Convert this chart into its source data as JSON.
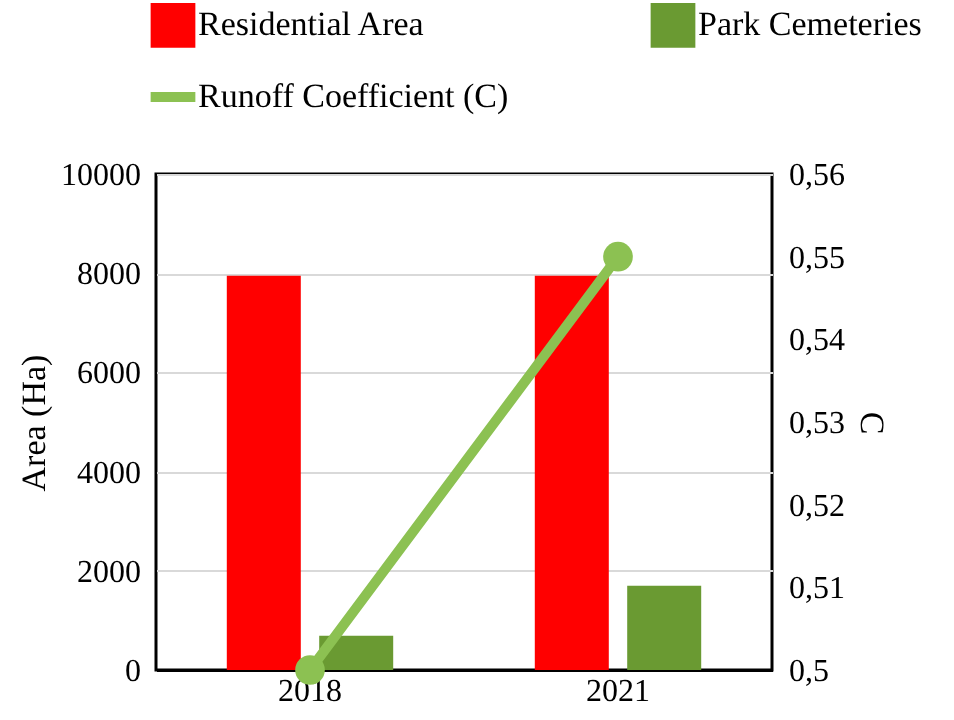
{
  "chart_data": {
    "type": "bar",
    "categories": [
      "2018",
      "2021"
    ],
    "ylabel": "Area (Ha)",
    "y2label": "C",
    "ylim": [
      0,
      10000
    ],
    "yticks": [
      0,
      2000,
      4000,
      6000,
      8000,
      10000
    ],
    "y2lim": [
      0.5,
      0.56
    ],
    "y2ticks": [
      {
        "value": 0.5,
        "label": "0,5"
      },
      {
        "value": 0.51,
        "label": "0,51"
      },
      {
        "value": 0.52,
        "label": "0,52"
      },
      {
        "value": 0.53,
        "label": "0,53"
      },
      {
        "value": 0.54,
        "label": "0,54"
      },
      {
        "value": 0.55,
        "label": "0,55"
      },
      {
        "value": 0.56,
        "label": "0,56"
      }
    ],
    "series": [
      {
        "name": "Residential Area",
        "color": "#ff0000",
        "values": [
          7950,
          7950
        ]
      },
      {
        "name": "Park  Cemeteries",
        "color": "#6a9a32",
        "values": [
          690,
          1700
        ]
      },
      {
        "name": "Runoff Coefficient (C)",
        "type": "line",
        "axis": "y2",
        "color": "#8cc152",
        "values": [
          0.5,
          0.55
        ]
      }
    ],
    "grid": "y",
    "legend": "top",
    "marker": "circle"
  }
}
